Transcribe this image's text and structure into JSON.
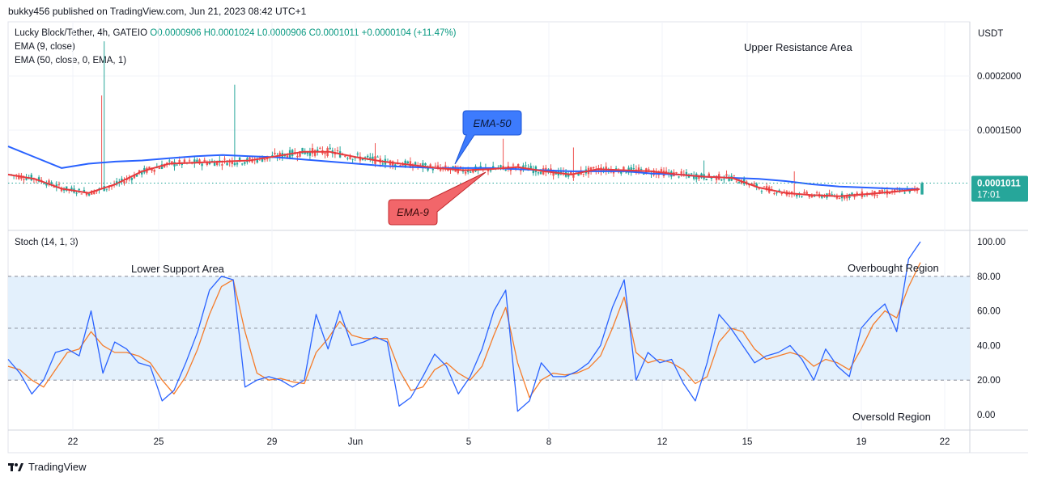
{
  "header": {
    "caption": "bukky456 published on TradingView.com, Jun 21, 2023 08:42 UTC+1"
  },
  "legend": {
    "symbol": "Lucky Block/Tether, 4h, GATEIO",
    "open": "O0.0000906",
    "high": "H0.0001024",
    "low": "L0.0000906",
    "close": "C0.0001011",
    "change": "+0.0000104 (+11.47%)",
    "ema9": "EMA (9, close)",
    "ema50": "EMA (50, close, 0, EMA, 1)",
    "stoch": "Stoch (14, 1, 3)"
  },
  "footer": {
    "brand": "TradingView"
  },
  "colors": {
    "up": "#26a69a",
    "down": "#ef5350",
    "ema9": "#e8393d",
    "ema50": "#2962ff",
    "stochK": "#2962ff",
    "stochD": "#f57c2a",
    "band": "#e3f0fc",
    "price_tag": "#26a69a"
  },
  "chart_data": [
    {
      "type": "candlestick",
      "currency": "USDT",
      "y_ticks": [
        "0.0002000",
        "0.0001500"
      ],
      "ylim": [
        7e-05,
        0.000245
      ],
      "last_price_label": "0.0001011",
      "countdown_label": "17:01",
      "x_ticks": [
        "22",
        "25",
        "29",
        "Jun",
        "5",
        "8",
        "12",
        "15",
        "19",
        "22"
      ],
      "annotations": {
        "upper_resistance": "Upper Resistance Area",
        "ema50_callout": "EMA-50",
        "ema9_callout": "EMA-9"
      },
      "series": [
        {
          "name": "EMA (9, close)",
          "values": [
            0.000109,
            0.000105,
            9.6e-05,
            9.2e-05,
            0.0001,
            0.000112,
            0.000119,
            0.00012,
            0.000121,
            0.000122,
            0.000126,
            0.00013,
            0.00013,
            0.000125,
            0.000121,
            0.000118,
            0.000115,
            0.000113,
            0.000114,
            0.000116,
            0.000112,
            0.000109,
            0.000114,
            0.000113,
            0.000112,
            0.000109,
            0.000107,
            0.000106,
            9.7e-05,
            9.2e-05,
            9e-05,
            8.9e-05,
            9.1e-05,
            9.3e-05,
            9.55e-05
          ]
        },
        {
          "name": "EMA (50, close, 0, EMA, 1)",
          "values": [
            0.000135,
            0.000125,
            0.000115,
            0.000119,
            0.000121,
            0.000122,
            0.000124,
            0.000126,
            0.000127,
            0.000126,
            0.000125,
            0.000123,
            0.000121,
            0.000119,
            0.000117,
            0.000116,
            0.000115,
            0.000115,
            0.000115,
            0.000114,
            0.000113,
            0.000112,
            0.000112,
            0.000112,
            0.00011,
            0.000109,
            0.000107,
            0.000106,
            0.000105,
            0.000103,
            0.0001,
            9.8e-05,
            9.7e-05,
            9.6e-05,
            9.55e-05
          ]
        }
      ]
    },
    {
      "type": "line",
      "title": "Stoch (14, 1, 3)",
      "y_ticks": [
        "100.00",
        "80.00",
        "60.00",
        "40.00",
        "20.00",
        "0.00"
      ],
      "ylim": [
        -6,
        102
      ],
      "bands": {
        "upper": 80,
        "middle": 50,
        "lower": 20
      },
      "annotations": {
        "lower_support": "Lower Support Area",
        "overbought": "Overbought Region",
        "oversold": "Oversold Region"
      },
      "series": [
        {
          "name": "%K",
          "values": [
            32,
            24,
            12,
            20,
            36,
            38,
            34,
            60,
            24,
            42,
            38,
            30,
            28,
            8,
            14,
            30,
            48,
            72,
            80,
            78,
            16,
            20,
            22,
            20,
            16,
            20,
            58,
            38,
            60,
            40,
            42,
            45,
            42,
            5,
            10,
            22,
            35,
            28,
            12,
            22,
            38,
            60,
            72,
            2,
            8,
            30,
            22,
            22,
            25,
            30,
            40,
            62,
            78,
            20,
            36,
            30,
            32,
            18,
            8,
            30,
            58,
            50,
            40,
            30,
            34,
            36,
            40,
            32,
            20,
            38,
            28,
            22,
            50,
            58,
            64,
            48,
            90,
            100
          ]
        },
        {
          "name": "%D",
          "values": [
            28,
            26,
            20,
            16,
            26,
            36,
            38,
            48,
            40,
            36,
            36,
            34,
            30,
            20,
            12,
            22,
            38,
            58,
            74,
            78,
            48,
            24,
            20,
            21,
            19,
            18,
            36,
            44,
            54,
            46,
            44,
            44,
            44,
            26,
            14,
            16,
            26,
            30,
            24,
            20,
            28,
            46,
            62,
            30,
            10,
            20,
            24,
            23,
            24,
            27,
            34,
            50,
            68,
            36,
            30,
            32,
            30,
            26,
            18,
            22,
            42,
            50,
            48,
            38,
            32,
            34,
            36,
            34,
            28,
            32,
            30,
            26,
            38,
            52,
            60,
            56,
            74,
            88
          ]
        }
      ]
    }
  ]
}
